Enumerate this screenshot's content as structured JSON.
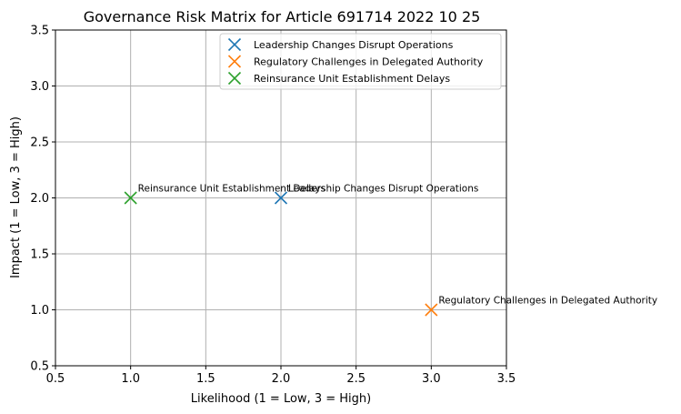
{
  "chart_data": {
    "type": "scatter",
    "title": "Governance Risk Matrix for Article 691714 2022 10 25",
    "xlabel": "Likelihood (1 = Low, 3 = High)",
    "ylabel": "Impact (1 = Low, 3 = High)",
    "xlim": [
      0.5,
      3.5
    ],
    "ylim": [
      0.5,
      3.5
    ],
    "xticks": [
      0.5,
      1.0,
      1.5,
      2.0,
      2.5,
      3.0,
      3.5
    ],
    "yticks": [
      0.5,
      1.0,
      1.5,
      2.0,
      2.5,
      3.0,
      3.5
    ],
    "xtick_labels": [
      "0.5",
      "1.0",
      "1.5",
      "2.0",
      "2.5",
      "3.0",
      "3.5"
    ],
    "ytick_labels": [
      "0.5",
      "1.0",
      "1.5",
      "2.0",
      "2.5",
      "3.0",
      "3.5"
    ],
    "grid": true,
    "marker": "x",
    "legend_position": "top-right",
    "series": [
      {
        "name": "Leadership Changes Disrupt Operations",
        "color": "#1f77b4",
        "x": [
          2
        ],
        "y": [
          2
        ],
        "label": "Leadership Changes Disrupt Operations"
      },
      {
        "name": "Regulatory Challenges in Delegated Authority",
        "color": "#ff7f0e",
        "x": [
          3
        ],
        "y": [
          1
        ],
        "label": "Regulatory Challenges in Delegated Authority"
      },
      {
        "name": "Reinsurance Unit Establishment Delays",
        "color": "#2ca02c",
        "x": [
          1
        ],
        "y": [
          2
        ],
        "label": "Reinsurance Unit Establishment Delays"
      }
    ]
  }
}
